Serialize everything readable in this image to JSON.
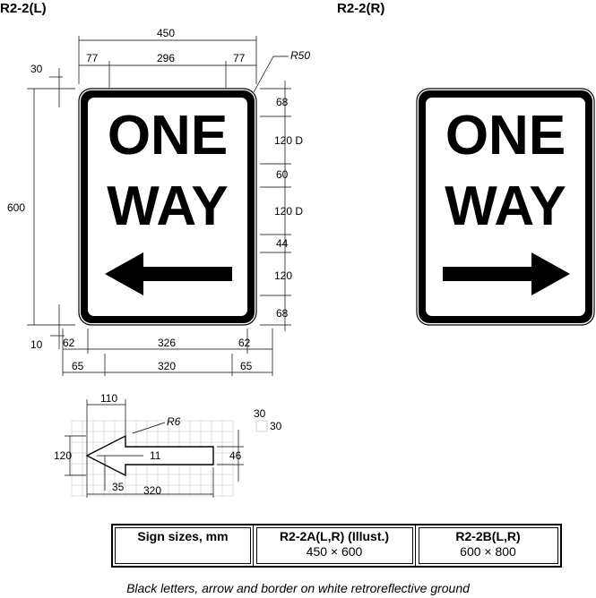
{
  "signs": {
    "left": {
      "code": "R2-2(L)",
      "line1": "ONE",
      "line2": "WAY",
      "arrow": "arrow-left-icon"
    },
    "right": {
      "code": "R2-2(R)",
      "line1": "ONE",
      "line2": "WAY",
      "arrow": "arrow-right-icon"
    }
  },
  "dimensions": {
    "overall_width": "450",
    "top_left_margin": "77",
    "top_middle": "296",
    "top_right_margin": "77",
    "corner_radius": "R50",
    "border_offset": "30",
    "overall_height": "600",
    "bottom_offset": "10",
    "vertical": [
      "68",
      "120 D",
      "60",
      "120 D",
      "44",
      "120",
      "68"
    ],
    "inner_row": [
      "62",
      "326",
      "62"
    ],
    "outer_row": [
      "65",
      "320",
      "65"
    ]
  },
  "arrow_detail": {
    "head_width": "110",
    "tip_radius": "R6",
    "head_height": "120",
    "notch": "11",
    "shaft_height": "46",
    "tip_offset": "35",
    "length": "320",
    "grid_w": "30",
    "grid_h": "30"
  },
  "sizes_table": {
    "header": "Sign sizes, mm",
    "col1_name": "R2-2A(L,R) (Illust.)",
    "col1_size": "450 × 600",
    "col2_name": "R2-2B(L,R)",
    "col2_size": "600 × 800"
  },
  "caption": "Black letters, arrow and border on white retroreflective ground"
}
